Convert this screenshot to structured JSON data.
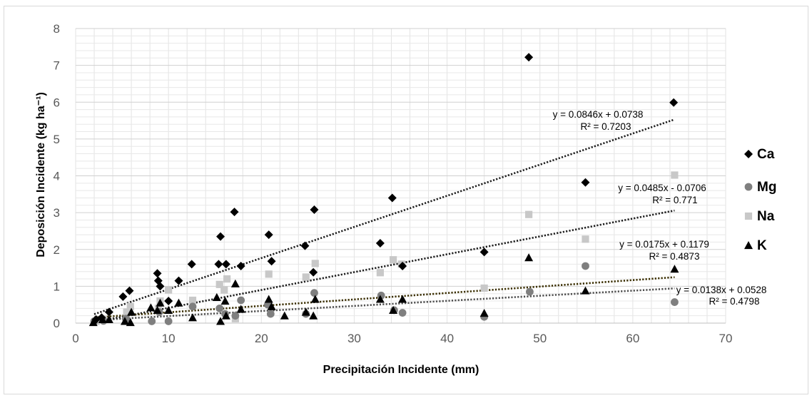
{
  "chart_data": {
    "type": "scatter",
    "title": "",
    "xlabel": "Precipitación Incidente (mm)",
    "ylabel": "Deposición Incidente (kg ha⁻¹)",
    "xlim": [
      0,
      70
    ],
    "ylim": [
      0,
      8
    ],
    "x_ticks": [
      "0",
      "10",
      "20",
      "30",
      "40",
      "50",
      "60",
      "70"
    ],
    "y_ticks": [
      "0",
      "1",
      "2",
      "3",
      "4",
      "5",
      "6",
      "7",
      "8"
    ],
    "grid": true,
    "legend_position": "right",
    "series": [
      {
        "name": "Ca",
        "marker": "diamond",
        "color": "#000000",
        "points": [
          [
            2.2,
            0.1
          ],
          [
            2.8,
            0.15
          ],
          [
            3.6,
            0.3
          ],
          [
            5.1,
            0.72
          ],
          [
            5.8,
            0.88
          ],
          [
            8.8,
            1.35
          ],
          [
            8.9,
            1.15
          ],
          [
            9.1,
            1.0
          ],
          [
            10.0,
            0.6
          ],
          [
            11.1,
            1.15
          ],
          [
            12.5,
            1.6
          ],
          [
            15.4,
            1.6
          ],
          [
            15.6,
            2.35
          ],
          [
            16.2,
            1.6
          ],
          [
            17.1,
            3.02
          ],
          [
            17.8,
            1.55
          ],
          [
            20.8,
            2.4
          ],
          [
            21.1,
            1.68
          ],
          [
            24.7,
            2.1
          ],
          [
            25.6,
            1.38
          ],
          [
            25.7,
            3.08
          ],
          [
            32.8,
            2.17
          ],
          [
            34.1,
            3.4
          ],
          [
            35.2,
            1.55
          ],
          [
            44.0,
            1.93
          ],
          [
            48.8,
            7.22
          ],
          [
            54.9,
            3.82
          ],
          [
            64.4,
            5.99
          ]
        ]
      },
      {
        "name": "Mg",
        "marker": "circle",
        "color": "#7f7f7f",
        "points": [
          [
            2.0,
            0.05
          ],
          [
            3.0,
            0.06
          ],
          [
            5.4,
            0.12
          ],
          [
            8.2,
            0.05
          ],
          [
            9.0,
            0.3
          ],
          [
            10.0,
            0.05
          ],
          [
            12.6,
            0.45
          ],
          [
            15.5,
            0.4
          ],
          [
            16.1,
            0.25
          ],
          [
            17.2,
            0.2
          ],
          [
            17.8,
            0.62
          ],
          [
            20.7,
            0.5
          ],
          [
            21.0,
            0.25
          ],
          [
            24.8,
            0.25
          ],
          [
            25.7,
            0.82
          ],
          [
            32.9,
            0.75
          ],
          [
            34.3,
            0.35
          ],
          [
            35.2,
            0.28
          ],
          [
            44.0,
            0.17
          ],
          [
            48.9,
            0.85
          ],
          [
            54.9,
            1.55
          ],
          [
            64.5,
            0.57
          ]
        ]
      },
      {
        "name": "Na",
        "marker": "square",
        "color": "#c8c8c8",
        "points": [
          [
            2.2,
            0.05
          ],
          [
            3.0,
            0.1
          ],
          [
            5.5,
            0.3
          ],
          [
            5.9,
            0.45
          ],
          [
            8.9,
            0.4
          ],
          [
            9.1,
            0.6
          ],
          [
            10.0,
            0.9
          ],
          [
            12.6,
            0.62
          ],
          [
            15.5,
            1.05
          ],
          [
            16.0,
            0.9
          ],
          [
            16.3,
            1.2
          ],
          [
            17.2,
            0.12
          ],
          [
            20.8,
            1.33
          ],
          [
            24.8,
            1.25
          ],
          [
            25.8,
            1.62
          ],
          [
            32.8,
            1.37
          ],
          [
            34.2,
            1.72
          ],
          [
            35.1,
            1.6
          ],
          [
            44.0,
            0.95
          ],
          [
            48.8,
            2.95
          ],
          [
            54.9,
            2.28
          ],
          [
            64.5,
            4.02
          ]
        ]
      },
      {
        "name": "K",
        "marker": "triangle",
        "color": "#000000",
        "points": [
          [
            1.9,
            0.02
          ],
          [
            2.9,
            0.1
          ],
          [
            3.6,
            0.1
          ],
          [
            5.3,
            0.05
          ],
          [
            5.9,
            0.02
          ],
          [
            6.0,
            0.3
          ],
          [
            8.1,
            0.42
          ],
          [
            8.8,
            0.35
          ],
          [
            9.1,
            0.55
          ],
          [
            10.0,
            0.35
          ],
          [
            11.1,
            0.55
          ],
          [
            12.6,
            0.15
          ],
          [
            15.2,
            0.7
          ],
          [
            15.6,
            0.05
          ],
          [
            16.1,
            0.6
          ],
          [
            16.2,
            0.2
          ],
          [
            17.2,
            1.07
          ],
          [
            17.8,
            0.38
          ],
          [
            20.8,
            0.65
          ],
          [
            21.1,
            0.45
          ],
          [
            22.5,
            0.2
          ],
          [
            24.8,
            0.3
          ],
          [
            25.6,
            0.2
          ],
          [
            25.8,
            0.65
          ],
          [
            32.8,
            0.65
          ],
          [
            34.2,
            0.35
          ],
          [
            35.2,
            0.65
          ],
          [
            44.0,
            0.27
          ],
          [
            48.8,
            1.78
          ],
          [
            54.9,
            0.88
          ],
          [
            64.5,
            1.47
          ]
        ]
      }
    ],
    "trendlines": [
      {
        "series": "Ca",
        "slope": 0.0846,
        "intercept": 0.0738,
        "x_range": [
          2,
          64.5
        ],
        "color": "#1f1f1f",
        "equation": "y = 0.0846x + 0.0738",
        "r2": "R² = 0.7203"
      },
      {
        "series": "Mg",
        "slope": 0.0138,
        "intercept": 0.0528,
        "x_range": [
          2,
          64.5
        ],
        "color": "#505050",
        "equation": "y = 0.0138x + 0.0528",
        "r2": "R² = 0.4798"
      },
      {
        "series": "Na",
        "slope": 0.0485,
        "intercept": -0.0706,
        "x_range": [
          2,
          64.5
        ],
        "color": "#1f1f1f",
        "equation": "y = 0.0485x - 0.0706",
        "r2": "R² = 0.771"
      },
      {
        "series": "K",
        "slope": 0.0175,
        "intercept": 0.1179,
        "x_range": [
          2,
          64.5
        ],
        "color": "#3a2e00",
        "equation": "y = 0.0175x + 0.1179",
        "r2": "R² = 0.4873"
      }
    ]
  }
}
